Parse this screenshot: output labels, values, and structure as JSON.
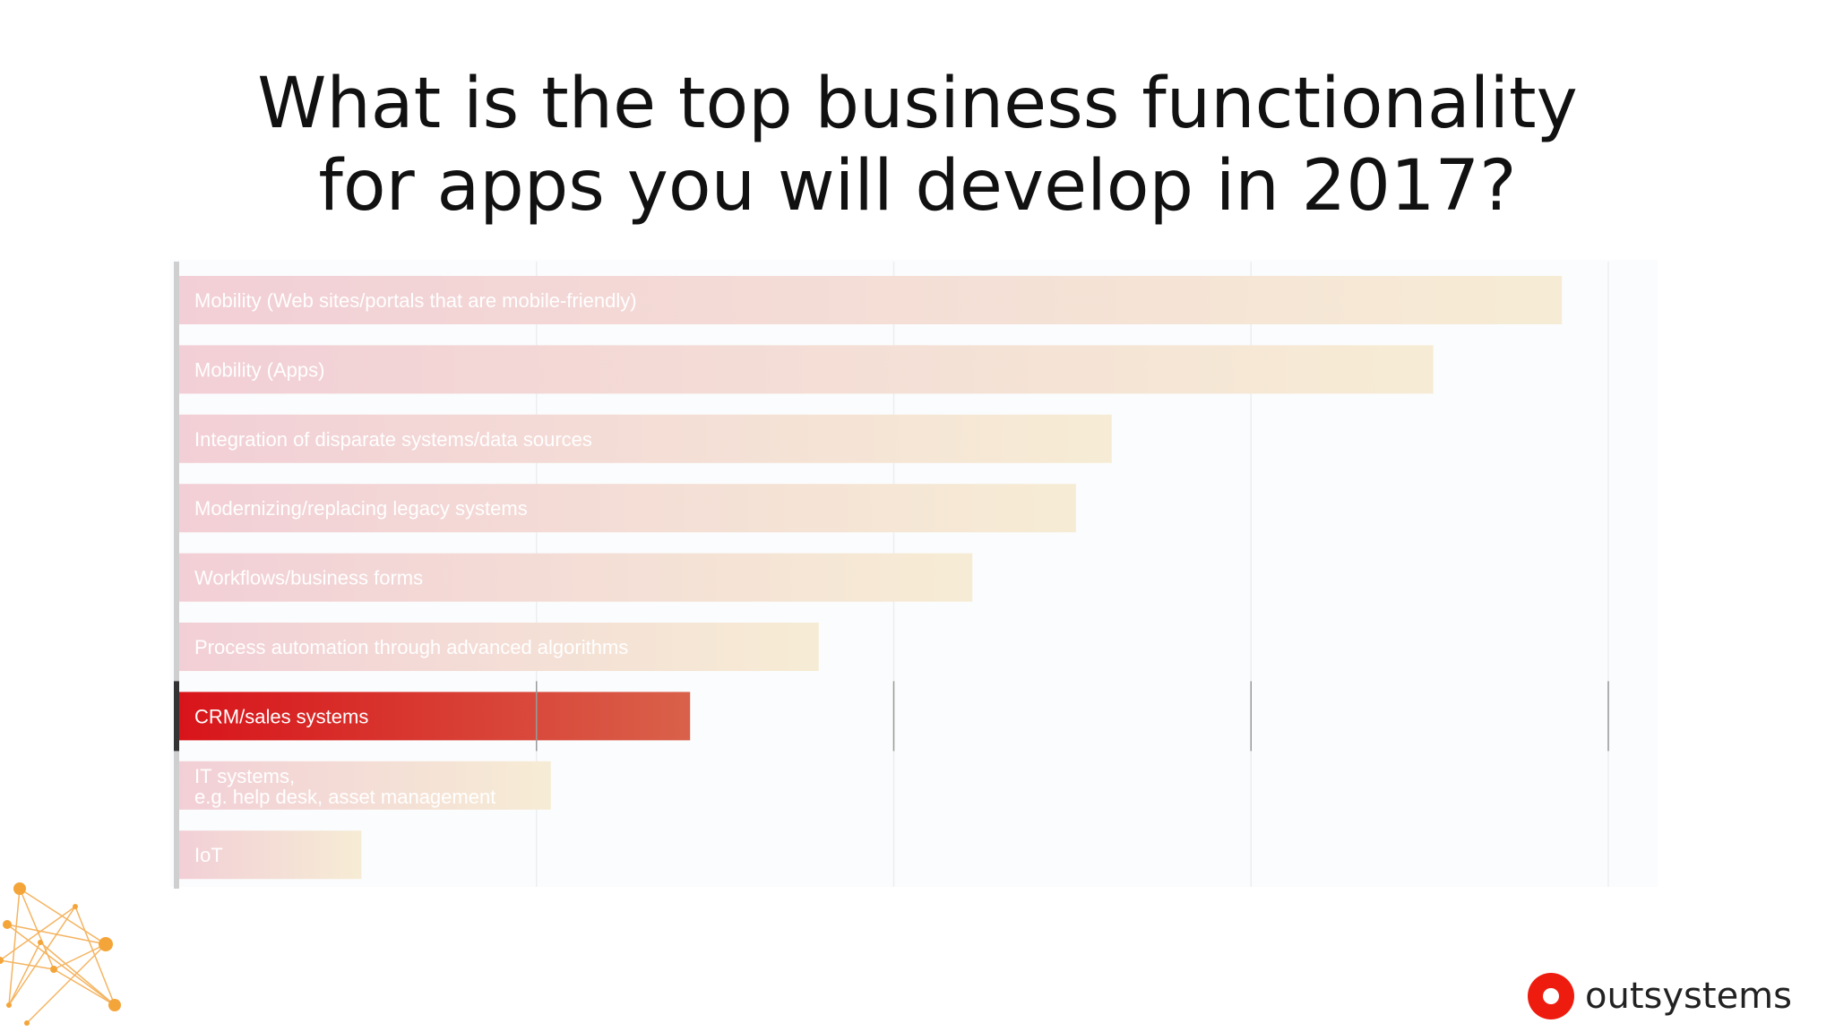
{
  "title": {
    "line1": "What is the top business functionality",
    "line2": "for apps you will develop in 2017?"
  },
  "chart_data": {
    "type": "bar",
    "orientation": "horizontal",
    "categories": [
      "Mobility (Web sites/portals that are mobile-friendly)",
      "Mobility (Apps)",
      "Integration of disparate systems/data sources",
      "Modernizing/replacing legacy systems",
      "Workflows/business forms",
      "Process automation through advanced algorithms",
      "CRM/sales systems",
      "IT systems, e.g. help desk, asset management",
      "IoT"
    ],
    "values": [
      38.7,
      35.1,
      26.1,
      25.1,
      22.2,
      17.9,
      14.3,
      10.4,
      5.1
    ],
    "highlighted": "CRM/sales systems",
    "xlim": [
      0,
      40
    ],
    "grid": true,
    "colors": {
      "highlight_start": "#d8141a",
      "highlight_end": "#d9614a",
      "faded_start": "#f2cfd6",
      "faded_end": "#f6ecd5",
      "highlight_label": "#ffffff",
      "faded_label": "#ffffff"
    }
  },
  "brand": {
    "name": "outsystems",
    "logo_icon": "outsystems-logo-icon",
    "color": "#ee1c0f"
  }
}
